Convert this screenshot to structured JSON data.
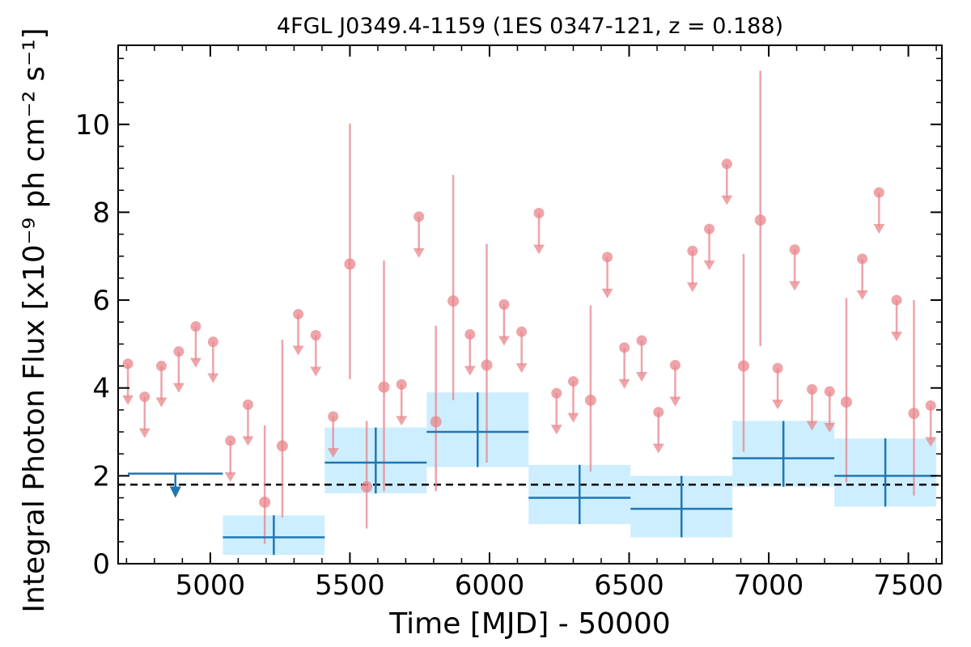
{
  "chart_data": {
    "type": "scatter",
    "title": "4FGL J0349.4-1159 (1ES 0347-121, z = 0.188)",
    "xlabel": "Time [MJD] - 50000",
    "ylabel": "Integral Photon Flux [x10⁻⁹ ph cm⁻² s⁻¹]",
    "xlim": [
      4670,
      7620
    ],
    "ylim": [
      0,
      11.8
    ],
    "xticks": [
      5000,
      5500,
      6000,
      6500,
      7000,
      7500
    ],
    "yticks": [
      0,
      2,
      4,
      6,
      8,
      10
    ],
    "colors": {
      "short_bins": "#e8868b",
      "long_bins": "#1f77b4",
      "long_bins_band": "#cdeeff",
      "reference_line": "#000000"
    },
    "reference_flux": 1.8,
    "long_bins_upper_limits": [
      {
        "x_start": 4705,
        "x_end": 5045,
        "ul": 2.05
      }
    ],
    "long_bins": [
      {
        "x_start": 5045,
        "x_end": 5410,
        "y": 0.6,
        "y_low": 0.2,
        "y_high": 1.1
      },
      {
        "x_start": 5410,
        "x_end": 5775,
        "y": 2.3,
        "y_low": 1.6,
        "y_high": 3.1
      },
      {
        "x_start": 5775,
        "x_end": 6140,
        "y": 3.0,
        "y_low": 2.2,
        "y_high": 3.9
      },
      {
        "x_start": 6140,
        "x_end": 6505,
        "y": 1.5,
        "y_low": 0.9,
        "y_high": 2.25
      },
      {
        "x_start": 6505,
        "x_end": 6870,
        "y": 1.25,
        "y_low": 0.6,
        "y_high": 2.0
      },
      {
        "x_start": 6870,
        "x_end": 7235,
        "y": 2.4,
        "y_low": 1.75,
        "y_high": 3.25
      },
      {
        "x_start": 7235,
        "x_end": 7600,
        "y": 2.0,
        "y_low": 1.3,
        "y_high": 2.85
      }
    ],
    "short_bins_upper_limits": [
      {
        "x": 4705,
        "ul": 4.55
      },
      {
        "x": 4765,
        "ul": 3.8
      },
      {
        "x": 4825,
        "ul": 4.5
      },
      {
        "x": 4887,
        "ul": 4.83
      },
      {
        "x": 4948,
        "ul": 5.4
      },
      {
        "x": 5010,
        "ul": 5.05
      },
      {
        "x": 5072,
        "ul": 2.8
      },
      {
        "x": 5135,
        "ul": 3.62
      },
      {
        "x": 5315,
        "ul": 5.68
      },
      {
        "x": 5378,
        "ul": 5.2
      },
      {
        "x": 5440,
        "ul": 3.35
      },
      {
        "x": 5685,
        "ul": 4.08
      },
      {
        "x": 5747,
        "ul": 7.9
      },
      {
        "x": 5930,
        "ul": 5.22
      },
      {
        "x": 6052,
        "ul": 5.9
      },
      {
        "x": 6115,
        "ul": 5.28
      },
      {
        "x": 6177,
        "ul": 7.98
      },
      {
        "x": 6240,
        "ul": 3.88
      },
      {
        "x": 6300,
        "ul": 4.15
      },
      {
        "x": 6422,
        "ul": 6.98
      },
      {
        "x": 6483,
        "ul": 4.92
      },
      {
        "x": 6545,
        "ul": 5.08
      },
      {
        "x": 6605,
        "ul": 3.45
      },
      {
        "x": 6665,
        "ul": 4.52
      },
      {
        "x": 6727,
        "ul": 7.12
      },
      {
        "x": 6787,
        "ul": 7.62
      },
      {
        "x": 6850,
        "ul": 9.1
      },
      {
        "x": 7032,
        "ul": 4.45
      },
      {
        "x": 7093,
        "ul": 7.15
      },
      {
        "x": 7155,
        "ul": 3.97
      },
      {
        "x": 7218,
        "ul": 3.92
      },
      {
        "x": 7335,
        "ul": 6.94
      },
      {
        "x": 7395,
        "ul": 8.45
      },
      {
        "x": 7458,
        "ul": 6.0
      },
      {
        "x": 7580,
        "ul": 3.6
      }
    ],
    "short_bins": [
      {
        "x": 5195,
        "y": 1.4,
        "y_low": 0.45,
        "y_high": 3.15
      },
      {
        "x": 5258,
        "y": 2.68,
        "y_low": 1.05,
        "y_high": 5.1
      },
      {
        "x": 5500,
        "y": 6.82,
        "y_low": 4.2,
        "y_high": 10.02
      },
      {
        "x": 5560,
        "y": 1.75,
        "y_low": 0.8,
        "y_high": 3.25
      },
      {
        "x": 5622,
        "y": 4.02,
        "y_low": 1.65,
        "y_high": 6.9
      },
      {
        "x": 5808,
        "y": 3.23,
        "y_low": 1.65,
        "y_high": 5.42
      },
      {
        "x": 5870,
        "y": 5.98,
        "y_low": 3.72,
        "y_high": 8.85
      },
      {
        "x": 5990,
        "y": 4.52,
        "y_low": 2.3,
        "y_high": 7.28
      },
      {
        "x": 6362,
        "y": 3.72,
        "y_low": 2.1,
        "y_high": 5.88
      },
      {
        "x": 6910,
        "y": 4.5,
        "y_low": 2.55,
        "y_high": 7.05
      },
      {
        "x": 6970,
        "y": 7.82,
        "y_low": 4.95,
        "y_high": 11.22
      },
      {
        "x": 7278,
        "y": 3.68,
        "y_low": 1.85,
        "y_high": 6.05
      },
      {
        "x": 7520,
        "y": 3.42,
        "y_low": 1.55,
        "y_high": 6.0
      }
    ]
  }
}
